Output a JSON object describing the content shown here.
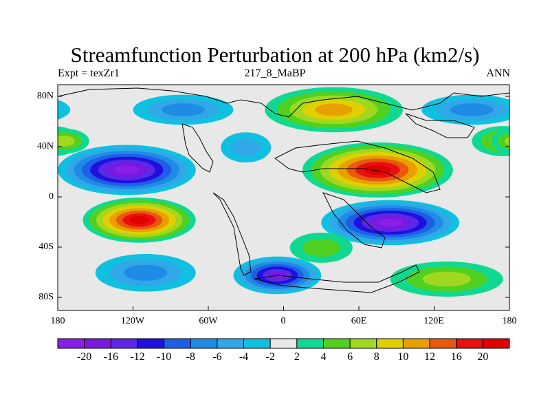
{
  "header": {
    "title": "Streamfunction Perturbation at 200 hPa (km2/s)",
    "experiment": "Expt = texZr1",
    "case": "217_8_MaBP",
    "season": "ANN"
  },
  "axes": {
    "lat_ticks": [
      "80N",
      "40N",
      "0",
      "40S",
      "80S"
    ],
    "lon_ticks": [
      "180",
      "120W",
      "60W",
      "0",
      "60E",
      "120E",
      "180"
    ]
  },
  "colorbar": {
    "labels": [
      "-20",
      "-16",
      "-12",
      "-10",
      "-8",
      "-6",
      "-4",
      "-2",
      "2",
      "4",
      "6",
      "8",
      "10",
      "12",
      "16",
      "20"
    ],
    "colors": [
      "#8a1ee6",
      "#7a18e0",
      "#5a28e6",
      "#2010e0",
      "#1e5fe6",
      "#1e8ce6",
      "#30a8e8",
      "#10c0e0",
      "#e8e8e8",
      "#10d890",
      "#50d020",
      "#a0d820",
      "#e0d000",
      "#e8a000",
      "#e85810",
      "#e81010",
      "#e00000"
    ]
  },
  "anomalies": [
    {
      "name": "north-pacific-low",
      "lon": -125,
      "lat": 22,
      "rx": 55,
      "ry": 20,
      "value": -20
    },
    {
      "name": "south-pacific-high",
      "lon": -115,
      "lat": -18,
      "rx": 45,
      "ry": 18,
      "value": 20
    },
    {
      "name": "asia-high",
      "lon": 75,
      "lat": 22,
      "rx": 60,
      "ry": 22,
      "value": 20
    },
    {
      "name": "south-indian-low",
      "lon": 85,
      "lat": -20,
      "rx": 55,
      "ry": 18,
      "value": -20
    },
    {
      "name": "southern-ocean-low",
      "lon": -5,
      "lat": -62,
      "rx": 35,
      "ry": 15,
      "value": -16
    },
    {
      "name": "arctic-high",
      "lon": 40,
      "lat": 70,
      "rx": 55,
      "ry": 18,
      "value": 10
    },
    {
      "name": "north-pacific-east-low",
      "lon": 150,
      "lat": 70,
      "rx": 40,
      "ry": 12,
      "value": -6
    },
    {
      "name": "east-atlantic-high",
      "lon": 175,
      "lat": 45,
      "rx": 25,
      "ry": 12,
      "value": 6
    },
    {
      "name": "west-edge-high",
      "lon": -175,
      "lat": 45,
      "rx": 20,
      "ry": 10,
      "value": 6
    },
    {
      "name": "south-pacific-west-low",
      "lon": -110,
      "lat": -60,
      "rx": 40,
      "ry": 15,
      "value": -6
    },
    {
      "name": "south-atlantic-high",
      "lon": 30,
      "lat": -40,
      "rx": 25,
      "ry": 12,
      "value": 4
    },
    {
      "name": "southern-high",
      "lon": 130,
      "lat": -65,
      "rx": 45,
      "ry": 14,
      "value": 6
    },
    {
      "name": "north-america-low",
      "lon": -80,
      "lat": 70,
      "rx": 40,
      "ry": 12,
      "value": -6
    },
    {
      "name": "north-atlantic-low",
      "lon": -30,
      "lat": 40,
      "rx": 20,
      "ry": 12,
      "value": -4
    }
  ]
}
